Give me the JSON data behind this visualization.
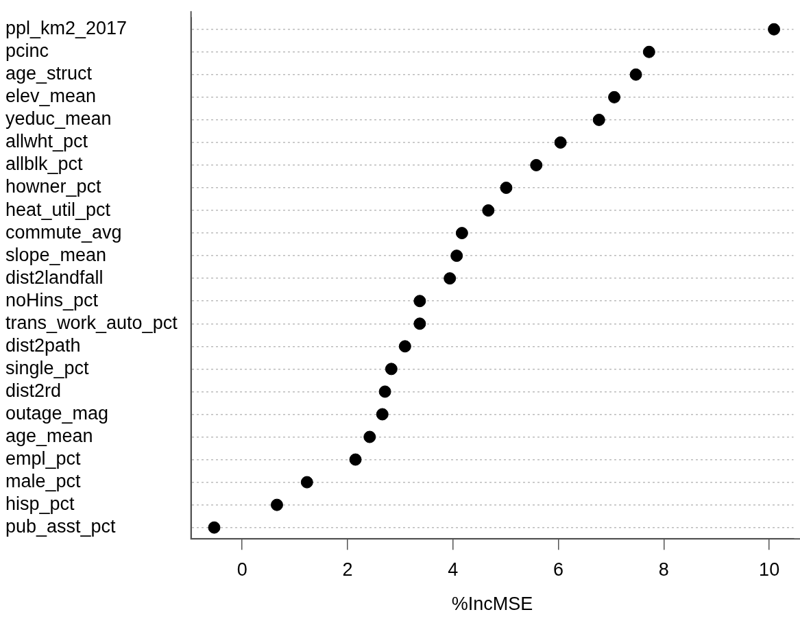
{
  "chart_data": {
    "type": "scatter",
    "orientation": "horizontal",
    "xlabel": "%IncMSE",
    "categories": [
      "ppl_km2_2017",
      "pcinc",
      "age_struct",
      "elev_mean",
      "yeduc_mean",
      "allwht_pct",
      "allblk_pct",
      "howner_pct",
      "heat_util_pct",
      "commute_avg",
      "slope_mean",
      "dist2landfall",
      "noHins_pct",
      "trans_work_auto_pct",
      "dist2path",
      "single_pct",
      "dist2rd",
      "outage_mag",
      "age_mean",
      "empl_pct",
      "male_pct",
      "hisp_pct",
      "pub_asst_pct"
    ],
    "values": [
      10.09,
      7.72,
      7.47,
      7.06,
      6.77,
      6.04,
      5.58,
      5.01,
      4.67,
      4.17,
      4.07,
      3.94,
      3.37,
      3.37,
      3.09,
      2.83,
      2.71,
      2.66,
      2.42,
      2.15,
      1.23,
      0.66,
      -0.53
    ],
    "color": "#000000",
    "marker": "circle",
    "grid": "y",
    "xlim": [
      -0.97,
      10.46
    ],
    "xticks": [
      0,
      2,
      4,
      6,
      8,
      10
    ]
  }
}
